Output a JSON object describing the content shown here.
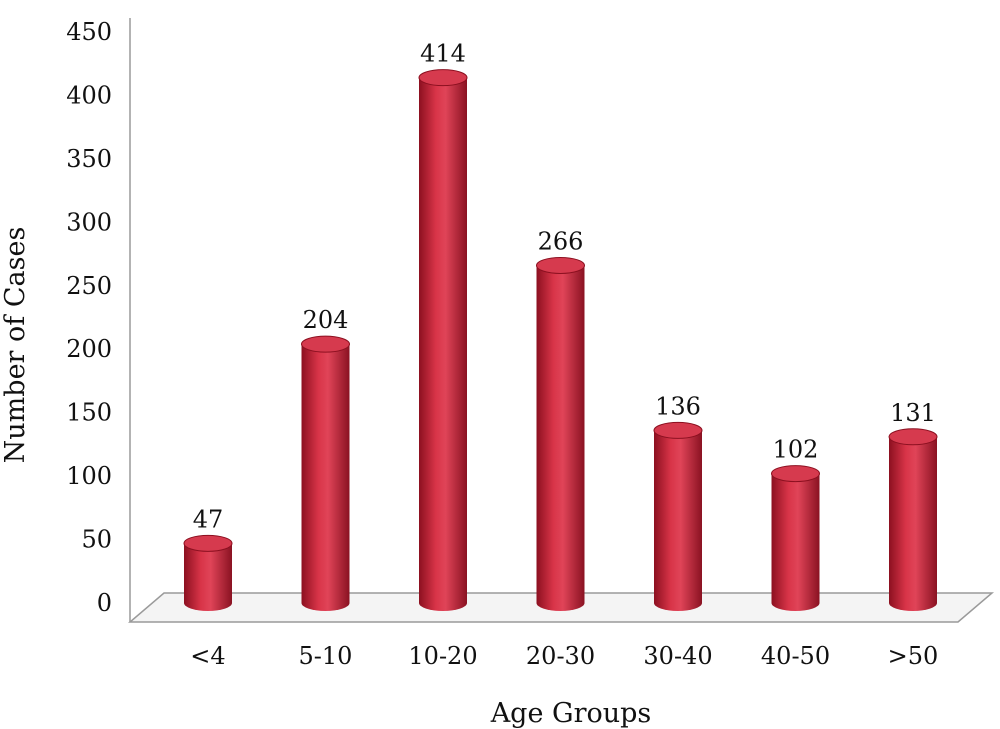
{
  "chart_data": {
    "type": "bar",
    "title": "",
    "xlabel": "Age Groups",
    "ylabel": "Number of Cases",
    "categories": [
      "<4",
      "5-10",
      "10-20",
      "20-30",
      "30-40",
      "40-50",
      ">50"
    ],
    "values": [
      47,
      204,
      414,
      266,
      136,
      102,
      131
    ],
    "data_labels": [
      "47",
      "204",
      "414",
      "266",
      "136",
      "102",
      "131"
    ],
    "ylim": [
      0,
      450
    ],
    "yticks": [
      0,
      50,
      100,
      150,
      200,
      250,
      300,
      350,
      400,
      450
    ],
    "ytick_labels": [
      "0",
      "50",
      "100",
      "150",
      "200",
      "250",
      "300",
      "350",
      "400",
      "450"
    ],
    "grid": false,
    "legend": "none",
    "style": "3d-cylinder",
    "colors": {
      "bar_main": "#c8283c",
      "bar_dark": "#8c1020",
      "bar_light": "#e85a6c",
      "bar_top": "#d63a4e",
      "floor": "#f4f4f4",
      "axis": "#9a9a9a"
    }
  }
}
